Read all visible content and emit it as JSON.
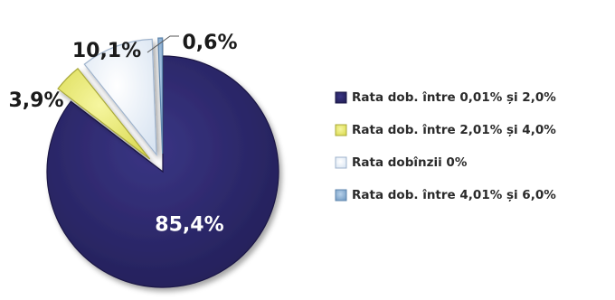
{
  "chart_data": {
    "type": "pie",
    "exploded": true,
    "legend_position": "right",
    "slices": [
      {
        "label": "Rata dob. între 0,01% și 2,0%",
        "value": 85.4,
        "value_label": "85,4%",
        "color": "#2b2766",
        "edge": "#1a1745"
      },
      {
        "label": "Rata dob. între 2,01% și 4,0%",
        "value": 3.9,
        "value_label": "3,9%",
        "color": "#e9e96a",
        "edge": "#a9a93a"
      },
      {
        "label": "Rata dobînzii 0%",
        "value": 10.1,
        "value_label": "10,1%",
        "color": "#e6eef8",
        "edge": "#9fb3cc"
      },
      {
        "label": "Rata dob. între 4,01% și 6,0%",
        "value": 0.6,
        "value_label": "0,6%",
        "color": "#8fb4d8",
        "edge": "#5f86ad"
      }
    ]
  }
}
